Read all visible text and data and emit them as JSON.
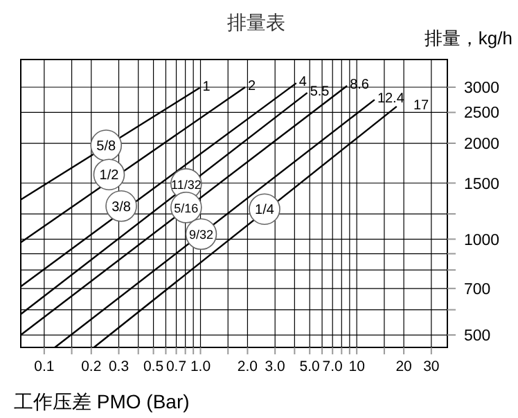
{
  "chart_data": {
    "type": "line",
    "title": "排量表",
    "xlabel": "工作压差 PMO (Bar)",
    "ylabel": "排量，kg/h",
    "log": "xy",
    "grid": true,
    "tick_labels": true,
    "xlim": [
      0.0708,
      38
    ],
    "ylim": [
      457,
      3665
    ],
    "xticks": [
      0.1,
      {
        "value": 0.15,
        "label": null
      },
      0.2,
      0.3,
      {
        "value": 0.4,
        "label": null
      },
      0.5,
      {
        "value": 0.6,
        "label": null
      },
      0.7,
      {
        "value": 0.8,
        "label": null
      },
      {
        "value": 0.9,
        "label": null
      },
      {
        "value": 1,
        "label": "1.0"
      },
      {
        "value": 1.5,
        "label": null
      },
      {
        "value": 2,
        "label": "2.0"
      },
      {
        "value": 3,
        "label": "3.0"
      },
      {
        "value": 4,
        "label": null
      },
      {
        "value": 5,
        "label": "5.0"
      },
      {
        "value": 6,
        "label": null
      },
      {
        "value": 7,
        "label": "7.0"
      },
      {
        "value": 8,
        "label": null
      },
      {
        "value": 9,
        "label": null
      },
      10,
      {
        "value": 15,
        "label": null
      },
      20,
      30
    ],
    "yticks": [
      500,
      {
        "value": 600,
        "label": null
      },
      700,
      {
        "value": 800,
        "label": null
      },
      {
        "value": 900,
        "label": null
      },
      1000,
      {
        "value": 1200,
        "label": null
      },
      1500,
      2000,
      2500,
      3000
    ],
    "series": [
      {
        "name": "1",
        "color": "#000000",
        "x": [
          0.0708,
          0.99
        ],
        "values": [
          1330,
          2990
        ]
      },
      {
        "name": "2",
        "color": "#000000",
        "x": [
          0.0708,
          1.93
        ],
        "values": [
          977,
          3000
        ]
      },
      {
        "name": "4",
        "color": "#000000",
        "x": [
          0.0708,
          4.1
        ],
        "values": [
          710,
          3090
        ]
      },
      {
        "name": "5.5",
        "color": "#000000",
        "x": [
          0.0708,
          4.82
        ],
        "values": [
          581,
          2880
        ]
      },
      {
        "name": "8.6",
        "color": "#000000",
        "x": [
          0.0708,
          8.67
        ],
        "values": [
          500,
          3030
        ]
      },
      {
        "name": "12.4",
        "color": "#000000",
        "x": [
          0.117,
          13.0
        ],
        "values": [
          457,
          2740
        ]
      },
      {
        "name": "17",
        "color": "#000000",
        "x": [
          0.208,
          18.0
        ],
        "values": [
          457,
          2610
        ]
      }
    ],
    "annotations": [
      {
        "text": "5/8",
        "x": 0.249,
        "y": 1970
      },
      {
        "text": "1/2",
        "x": 0.26,
        "y": 1595
      },
      {
        "text": "3/8",
        "x": 0.311,
        "y": 1270
      },
      {
        "text": "11/32",
        "x": 0.81,
        "y": 1490
      },
      {
        "text": "5/16",
        "x": 0.81,
        "y": 1257
      },
      {
        "text": "9/32",
        "x": 1.01,
        "y": 1037
      },
      {
        "text": "1/4",
        "x": 2.57,
        "y": 1242
      }
    ]
  }
}
